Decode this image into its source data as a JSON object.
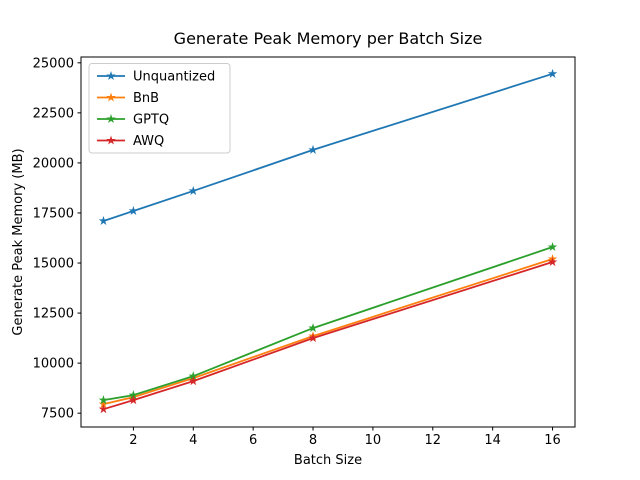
{
  "figure": {
    "background": "#ffffff",
    "spine_color": "#000000"
  },
  "chart_data": {
    "type": "line",
    "title": "Generate Peak Memory per Batch Size",
    "xlabel": "Batch Size",
    "ylabel": "Generate Peak Memory (MB)",
    "x": [
      1,
      2,
      4,
      8,
      16
    ],
    "series": [
      {
        "name": "Unquantized",
        "color": "#1f77b4",
        "values": [
          17100,
          17600,
          18600,
          20650,
          24450
        ]
      },
      {
        "name": "BnB",
        "color": "#ff7f0e",
        "values": [
          7950,
          8300,
          9250,
          11350,
          15200
        ]
      },
      {
        "name": "GPTQ",
        "color": "#2ca02c",
        "values": [
          8150,
          8400,
          9350,
          11750,
          15800
        ]
      },
      {
        "name": "AWQ",
        "color": "#d62728",
        "values": [
          7700,
          8150,
          9100,
          11250,
          15050
        ]
      }
    ],
    "marker": "star",
    "line_width": 1.8,
    "xticks": [
      2,
      4,
      6,
      8,
      10,
      12,
      14,
      16
    ],
    "yticks": [
      7500,
      10000,
      12500,
      15000,
      17500,
      20000,
      22500,
      25000
    ],
    "xlim": [
      0.25,
      16.75
    ],
    "ylim": [
      6810,
      25290
    ],
    "grid": false,
    "legend_position": "upper-left",
    "legend_border_color": "#cccccc"
  }
}
